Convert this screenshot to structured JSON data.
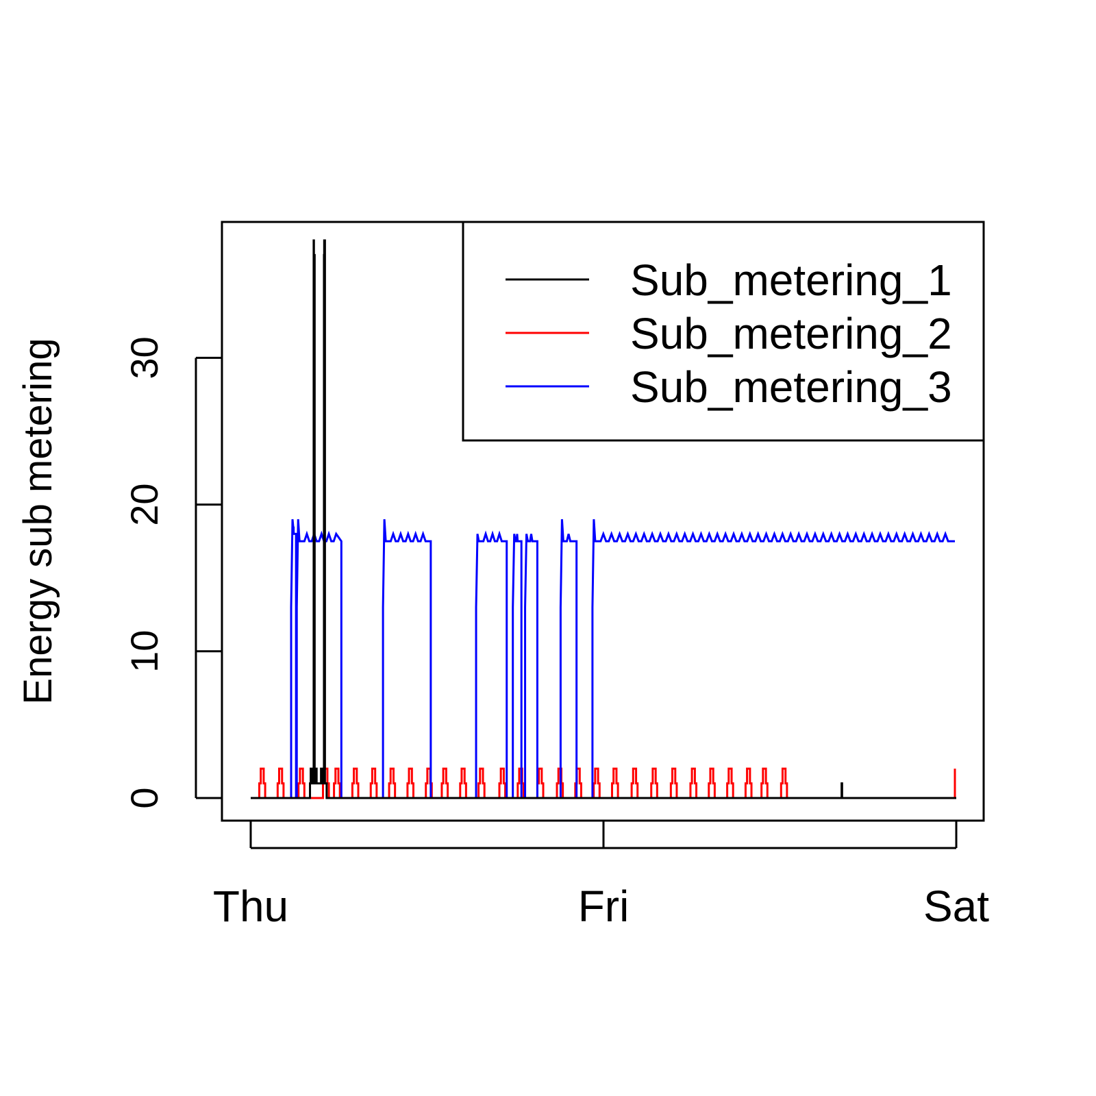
{
  "chart_data": {
    "type": "line",
    "title": "",
    "xlabel": "",
    "ylabel": "Energy sub metering",
    "x_axis": {
      "ticks": [
        {
          "label": "Thu",
          "value": "Thu 00:00"
        },
        {
          "label": "Fri",
          "value": "Fri 00:00"
        },
        {
          "label": "Sat",
          "value": "Sat 00:00"
        }
      ],
      "range": [
        "Thu 00:00",
        "Sat 00:00"
      ]
    },
    "y_axis": {
      "ticks": [
        0,
        10,
        20,
        30
      ],
      "tick_labels": [
        "0",
        "10",
        "20",
        "30"
      ],
      "ylim": [
        -1.5,
        39.5
      ]
    },
    "legend": {
      "position": "top-right"
    },
    "grid": false,
    "series": [
      {
        "name": "Sub_metering_1",
        "color": "#000000",
        "points": [
          [
            "Thu 00:00",
            0
          ],
          [
            "Thu 04:00",
            0
          ],
          [
            "Thu 04:02",
            1
          ],
          [
            "Thu 04:05",
            2
          ],
          [
            "Thu 04:07",
            1
          ],
          [
            "Thu 04:09",
            2
          ],
          [
            "Thu 04:11",
            1
          ],
          [
            "Thu 04:16",
            1
          ],
          [
            "Thu 04:17",
            38
          ],
          [
            "Thu 04:18",
            37
          ],
          [
            "Thu 04:20",
            37
          ],
          [
            "Thu 04:21",
            1
          ],
          [
            "Thu 04:25",
            1
          ],
          [
            "Thu 04:26",
            2
          ],
          [
            "Thu 04:29",
            1
          ],
          [
            "Thu 04:45",
            1
          ],
          [
            "Thu 04:47",
            2
          ],
          [
            "Thu 04:55",
            1
          ],
          [
            "Thu 04:58",
            1
          ],
          [
            "Thu 04:59",
            37
          ],
          [
            "Thu 05:00",
            38
          ],
          [
            "Thu 05:02",
            38
          ],
          [
            "Thu 05:03",
            1
          ],
          [
            "Thu 05:09",
            1
          ],
          [
            "Thu 05:10",
            0
          ],
          [
            "Fri 16:10",
            0
          ],
          [
            "Fri 16:12",
            1
          ],
          [
            "Fri 16:14",
            0
          ],
          [
            "Sat 00:00",
            0
          ]
        ]
      },
      {
        "name": "Sub_metering_2",
        "color": "#ff0000",
        "pulses": [
          "Thu 00:35",
          "Thu 01:50",
          "Thu 03:15",
          "Thu 04:55",
          "Thu 05:40",
          "Thu 06:55",
          "Thu 08:10",
          "Thu 09:25",
          "Thu 10:40",
          "Thu 11:55",
          "Thu 13:00",
          "Thu 14:15",
          "Thu 15:30",
          "Thu 16:55",
          "Thu 18:10",
          "Thu 19:30",
          "Thu 20:50",
          "Thu 22:05",
          "Thu 23:20",
          "Fri 00:35",
          "Fri 01:55",
          "Fri 03:15",
          "Fri 04:35",
          "Fri 05:55",
          "Fri 07:10",
          "Fri 08:25",
          "Fri 09:40",
          "Fri 10:45",
          "Fri 12:05"
        ],
        "pulse_value": 2,
        "shoulder_value": 1,
        "baseline": 0,
        "last_point": [
          "Sat 00:00",
          2
        ]
      },
      {
        "name": "Sub_metering_3",
        "color": "#0000ff",
        "segments": [
          {
            "start": "Thu 02:45",
            "end": "Thu 03:05",
            "high": 18,
            "peak": 19
          },
          {
            "start": "Thu 03:08",
            "end": "Thu 06:10",
            "high": 17.5,
            "peak": 19
          },
          {
            "start": "Thu 09:00",
            "end": "Thu 12:15",
            "high": 17.5,
            "peak": 19
          },
          {
            "start": "Thu 15:20",
            "end": "Thu 17:25",
            "high": 17.5,
            "peak": 18
          },
          {
            "start": "Thu 17:50",
            "end": "Thu 18:25",
            "high": 17.5,
            "peak": 18
          },
          {
            "start": "Thu 18:40",
            "end": "Thu 19:30",
            "high": 17.5,
            "peak": 18
          },
          {
            "start": "Thu 21:05",
            "end": "Thu 22:10",
            "high": 17.5,
            "peak": 19
          },
          {
            "start": "Thu 23:15",
            "end": "Sat 00:00",
            "high": 17.5,
            "peak": 19
          }
        ]
      }
    ]
  }
}
